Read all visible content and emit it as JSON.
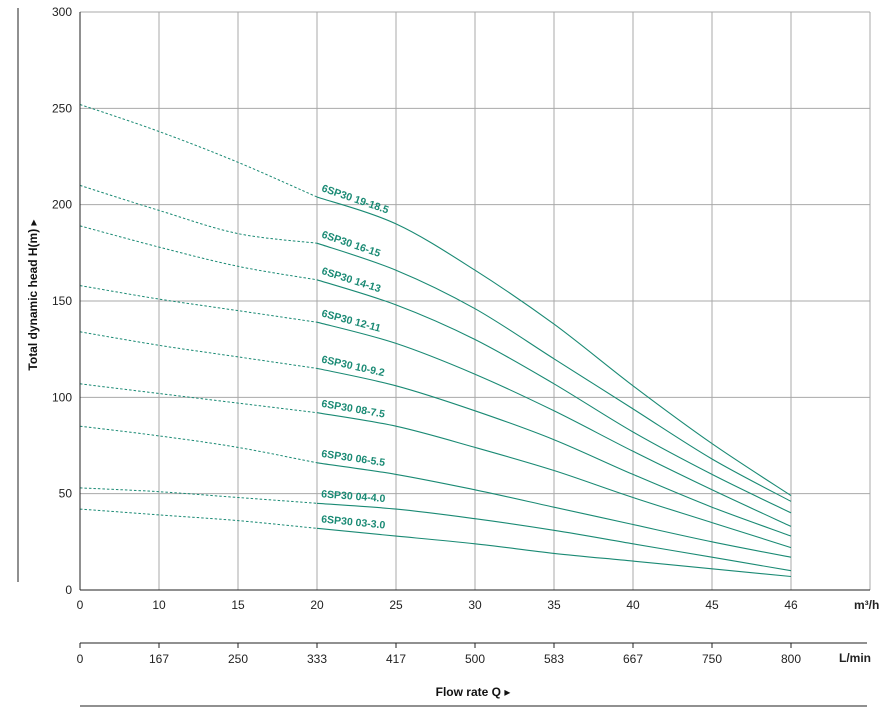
{
  "chart_data": {
    "type": "line",
    "title": "",
    "ylabel": "Total dynamic head H(m) ▸",
    "xlabel": "Flow rate Q ▸",
    "x_unit_primary": "m³/h",
    "x_unit_secondary": "L/min",
    "xlim": [
      0,
      50
    ],
    "ylim": [
      0,
      300
    ],
    "x_ticks": [
      0,
      10,
      15,
      20,
      25,
      30,
      35,
      40,
      45,
      46
    ],
    "y_ticks": [
      0,
      50,
      100,
      150,
      200,
      250,
      300
    ],
    "lpm_ticks": [
      "0",
      "167",
      "250",
      "333",
      "417",
      "500",
      "583",
      "667",
      "750",
      "800"
    ],
    "grid": true,
    "legend": "inline labels along curves",
    "curve_color": "#1a8a74",
    "series": [
      {
        "name": "6SP30 19-18.5",
        "dashed": [
          [
            0,
            252
          ],
          [
            5,
            238
          ],
          [
            10,
            222
          ],
          [
            15,
            204
          ]
        ],
        "solid": [
          [
            15,
            204
          ],
          [
            20,
            190
          ],
          [
            25,
            166
          ],
          [
            30,
            138
          ],
          [
            35,
            106
          ],
          [
            40,
            76
          ],
          [
            45,
            49
          ]
        ]
      },
      {
        "name": "6SP30 16-15",
        "dashed": [
          [
            0,
            210
          ],
          [
            5,
            197
          ],
          [
            10,
            185
          ],
          [
            15,
            180
          ]
        ],
        "solid": [
          [
            15,
            180
          ],
          [
            20,
            166
          ],
          [
            25,
            146
          ],
          [
            30,
            120
          ],
          [
            35,
            94
          ],
          [
            40,
            68
          ],
          [
            45,
            46
          ]
        ]
      },
      {
        "name": "6SP30 14-13",
        "dashed": [
          [
            0,
            189
          ],
          [
            5,
            178
          ],
          [
            10,
            168
          ],
          [
            15,
            161
          ]
        ],
        "solid": [
          [
            15,
            161
          ],
          [
            20,
            148
          ],
          [
            25,
            130
          ],
          [
            30,
            107
          ],
          [
            35,
            82
          ],
          [
            40,
            60
          ],
          [
            45,
            40
          ]
        ]
      },
      {
        "name": "6SP30 12-11",
        "dashed": [
          [
            0,
            158
          ],
          [
            5,
            151
          ],
          [
            10,
            145
          ],
          [
            15,
            139
          ]
        ],
        "solid": [
          [
            15,
            139
          ],
          [
            20,
            128
          ],
          [
            25,
            112
          ],
          [
            30,
            93
          ],
          [
            35,
            72
          ],
          [
            40,
            52
          ],
          [
            45,
            33
          ]
        ]
      },
      {
        "name": "6SP30 10-9.2",
        "dashed": [
          [
            0,
            134
          ],
          [
            5,
            127
          ],
          [
            10,
            121
          ],
          [
            15,
            115
          ]
        ],
        "solid": [
          [
            15,
            115
          ],
          [
            20,
            106
          ],
          [
            25,
            93
          ],
          [
            30,
            78
          ],
          [
            35,
            60
          ],
          [
            40,
            43
          ],
          [
            45,
            28
          ]
        ]
      },
      {
        "name": "6SP30 08-7.5",
        "dashed": [
          [
            0,
            107
          ],
          [
            5,
            102
          ],
          [
            10,
            97
          ],
          [
            15,
            92
          ]
        ],
        "solid": [
          [
            15,
            92
          ],
          [
            20,
            85
          ],
          [
            25,
            74
          ],
          [
            30,
            62
          ],
          [
            35,
            48
          ],
          [
            40,
            35
          ],
          [
            45,
            22
          ]
        ]
      },
      {
        "name": "6SP30 06-5.5",
        "dashed": [
          [
            0,
            85
          ],
          [
            5,
            80
          ],
          [
            10,
            74
          ],
          [
            15,
            66
          ]
        ],
        "solid": [
          [
            15,
            66
          ],
          [
            20,
            60
          ],
          [
            25,
            52
          ],
          [
            30,
            43
          ],
          [
            35,
            34
          ],
          [
            40,
            25
          ],
          [
            45,
            17
          ]
        ]
      },
      {
        "name": "6SP30 04-4.0",
        "dashed": [
          [
            0,
            53
          ],
          [
            5,
            51
          ],
          [
            10,
            48
          ],
          [
            15,
            45
          ]
        ],
        "solid": [
          [
            15,
            45
          ],
          [
            20,
            42
          ],
          [
            25,
            37
          ],
          [
            30,
            31
          ],
          [
            35,
            24
          ],
          [
            40,
            17
          ],
          [
            45,
            10
          ]
        ]
      },
      {
        "name": "6SP30 03-3.0",
        "dashed": [
          [
            0,
            42
          ],
          [
            5,
            39
          ],
          [
            10,
            36
          ],
          [
            15,
            32
          ]
        ],
        "solid": [
          [
            15,
            32
          ],
          [
            20,
            28
          ],
          [
            25,
            24
          ],
          [
            30,
            19
          ],
          [
            35,
            15
          ],
          [
            40,
            11
          ],
          [
            45,
            7
          ]
        ]
      }
    ]
  }
}
